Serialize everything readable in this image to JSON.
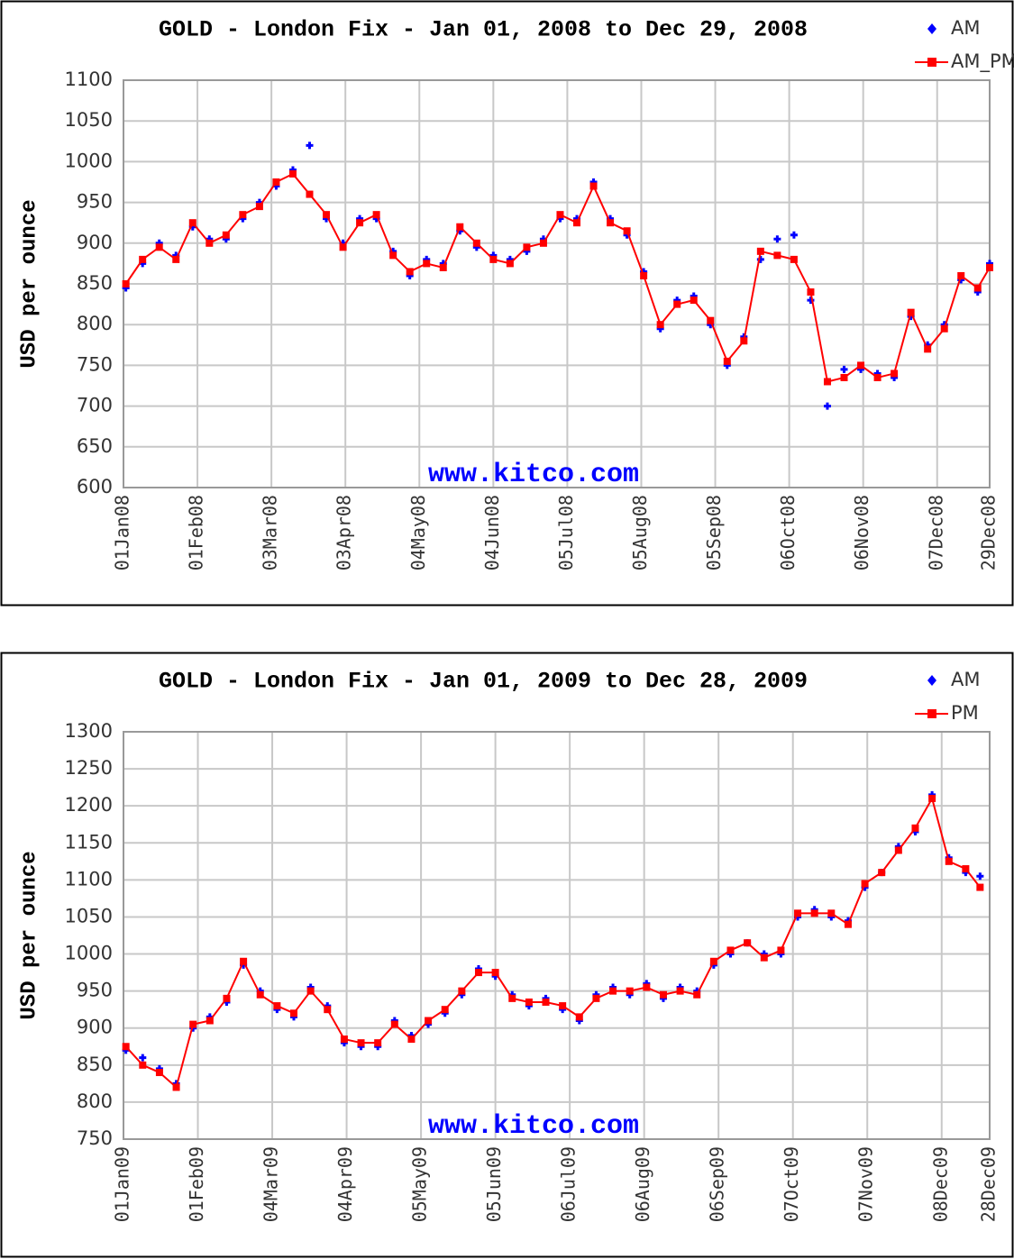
{
  "chart_data": [
    {
      "type": "line",
      "title": "GOLD - London Fix - Jan 01, 2008 to Dec 29, 2008",
      "y_label": "USD per ounce",
      "annotation": "www.kitco.com",
      "grid": true,
      "legend": "top-right",
      "x": [
        "2008-01-02",
        "2008-01-09",
        "2008-01-16",
        "2008-01-23",
        "2008-01-30",
        "2008-02-06",
        "2008-02-13",
        "2008-02-20",
        "2008-02-27",
        "2008-03-05",
        "2008-03-12",
        "2008-03-19",
        "2008-03-26",
        "2008-04-02",
        "2008-04-09",
        "2008-04-16",
        "2008-04-23",
        "2008-04-30",
        "2008-05-07",
        "2008-05-14",
        "2008-05-21",
        "2008-05-28",
        "2008-06-04",
        "2008-06-11",
        "2008-06-18",
        "2008-06-25",
        "2008-07-02",
        "2008-07-09",
        "2008-07-16",
        "2008-07-23",
        "2008-07-30",
        "2008-08-06",
        "2008-08-13",
        "2008-08-20",
        "2008-08-27",
        "2008-09-03",
        "2008-09-10",
        "2008-09-17",
        "2008-09-24",
        "2008-10-01",
        "2008-10-08",
        "2008-10-15",
        "2008-10-22",
        "2008-10-29",
        "2008-11-05",
        "2008-11-12",
        "2008-11-19",
        "2008-11-26",
        "2008-12-03",
        "2008-12-10",
        "2008-12-17",
        "2008-12-24",
        "2008-12-29"
      ],
      "series": [
        {
          "name": "AM",
          "color": "#0000ff",
          "values": [
            845,
            875,
            900,
            885,
            920,
            905,
            905,
            930,
            950,
            970,
            990,
            1020,
            930,
            900,
            930,
            930,
            890,
            860,
            880,
            875,
            915,
            895,
            885,
            880,
            890,
            905,
            930,
            930,
            975,
            930,
            910,
            865,
            795,
            830,
            835,
            800,
            750,
            785,
            880,
            905,
            910,
            830,
            700,
            745,
            745,
            740,
            735,
            810,
            775,
            800,
            855,
            840,
            875
          ]
        },
        {
          "name": "AM_PM",
          "color": "#ff0000",
          "values": [
            850,
            880,
            895,
            880,
            925,
            900,
            910,
            935,
            945,
            975,
            985,
            960,
            935,
            895,
            925,
            935,
            885,
            865,
            875,
            870,
            920,
            900,
            880,
            875,
            895,
            900,
            935,
            925,
            970,
            925,
            915,
            860,
            800,
            825,
            830,
            805,
            755,
            780,
            890,
            885,
            880,
            840,
            730,
            735,
            750,
            735,
            740,
            815,
            770,
            795,
            860,
            845,
            870
          ]
        }
      ],
      "xlim": [
        "2008-01-01",
        "2008-12-29"
      ],
      "xticks": [
        {
          "value": "2008-01-01",
          "label": "01Jan08"
        },
        {
          "value": "2008-02-01",
          "label": "01Feb08"
        },
        {
          "value": "2008-03-03",
          "label": "03Mar08"
        },
        {
          "value": "2008-04-03",
          "label": "03Apr08"
        },
        {
          "value": "2008-05-04",
          "label": "04May08"
        },
        {
          "value": "2008-06-04",
          "label": "04Jun08"
        },
        {
          "value": "2008-07-05",
          "label": "05Jul08"
        },
        {
          "value": "2008-08-05",
          "label": "05Aug08"
        },
        {
          "value": "2008-09-05",
          "label": "05Sep08"
        },
        {
          "value": "2008-10-06",
          "label": "06Oct08"
        },
        {
          "value": "2008-11-06",
          "label": "06Nov08"
        },
        {
          "value": "2008-12-07",
          "label": "07Dec08"
        },
        {
          "value": "2008-12-29",
          "label": "29Dec08"
        }
      ],
      "ylim": [
        600,
        1100
      ],
      "yticks": [
        600,
        650,
        700,
        750,
        800,
        850,
        900,
        950,
        1000,
        1050,
        1100
      ]
    },
    {
      "type": "line",
      "title": "GOLD - London Fix - Jan 01, 2009 to Dec 28, 2009",
      "y_label": "USD per ounce",
      "annotation": "www.kitco.com",
      "grid": true,
      "legend": "top-right",
      "x": [
        "2009-01-02",
        "2009-01-09",
        "2009-01-16",
        "2009-01-23",
        "2009-01-30",
        "2009-02-06",
        "2009-02-13",
        "2009-02-20",
        "2009-02-27",
        "2009-03-06",
        "2009-03-13",
        "2009-03-20",
        "2009-03-27",
        "2009-04-03",
        "2009-04-10",
        "2009-04-17",
        "2009-04-24",
        "2009-05-01",
        "2009-05-08",
        "2009-05-15",
        "2009-05-22",
        "2009-05-29",
        "2009-06-05",
        "2009-06-12",
        "2009-06-19",
        "2009-06-26",
        "2009-07-03",
        "2009-07-10",
        "2009-07-17",
        "2009-07-24",
        "2009-07-31",
        "2009-08-07",
        "2009-08-14",
        "2009-08-21",
        "2009-08-28",
        "2009-09-04",
        "2009-09-11",
        "2009-09-18",
        "2009-09-25",
        "2009-10-02",
        "2009-10-09",
        "2009-10-16",
        "2009-10-23",
        "2009-10-30",
        "2009-11-06",
        "2009-11-13",
        "2009-11-20",
        "2009-11-27",
        "2009-12-04",
        "2009-12-11",
        "2009-12-18",
        "2009-12-24"
      ],
      "series": [
        {
          "name": "AM",
          "color": "#0000ff",
          "values": [
            870,
            860,
            845,
            825,
            900,
            915,
            935,
            985,
            950,
            925,
            915,
            955,
            930,
            880,
            875,
            875,
            910,
            890,
            905,
            920,
            945,
            980,
            970,
            945,
            930,
            940,
            925,
            910,
            945,
            955,
            945,
            960,
            940,
            955,
            950,
            985,
            1000,
            1015,
            1000,
            1000,
            1050,
            1060,
            1050,
            1045,
            1090,
            1110,
            1145,
            1165,
            1215,
            1130,
            1110,
            1105
          ]
        },
        {
          "name": "PM",
          "color": "#ff0000",
          "values": [
            875,
            850,
            840,
            820,
            905,
            910,
            940,
            990,
            945,
            930,
            920,
            950,
            925,
            885,
            880,
            880,
            905,
            885,
            910,
            925,
            950,
            975,
            975,
            940,
            935,
            935,
            930,
            915,
            940,
            950,
            950,
            955,
            945,
            950,
            945,
            990,
            1005,
            1015,
            995,
            1005,
            1055,
            1055,
            1055,
            1040,
            1095,
            1110,
            1140,
            1170,
            1210,
            1125,
            1115,
            1090
          ]
        }
      ],
      "xlim": [
        "2009-01-01",
        "2009-12-28"
      ],
      "xticks": [
        {
          "value": "2009-01-01",
          "label": "01Jan09"
        },
        {
          "value": "2009-02-01",
          "label": "01Feb09"
        },
        {
          "value": "2009-03-04",
          "label": "04Mar09"
        },
        {
          "value": "2009-04-04",
          "label": "04Apr09"
        },
        {
          "value": "2009-05-05",
          "label": "05May09"
        },
        {
          "value": "2009-06-05",
          "label": "05Jun09"
        },
        {
          "value": "2009-07-06",
          "label": "06Jul09"
        },
        {
          "value": "2009-08-06",
          "label": "06Aug09"
        },
        {
          "value": "2009-09-06",
          "label": "06Sep09"
        },
        {
          "value": "2009-10-07",
          "label": "07Oct09"
        },
        {
          "value": "2009-11-07",
          "label": "07Nov09"
        },
        {
          "value": "2009-12-08",
          "label": "08Dec09"
        },
        {
          "value": "2009-12-28",
          "label": "28Dec09"
        }
      ],
      "ylim": [
        750,
        1300
      ],
      "yticks": [
        750,
        800,
        850,
        900,
        950,
        1000,
        1050,
        1100,
        1150,
        1200,
        1250,
        1300
      ]
    }
  ]
}
